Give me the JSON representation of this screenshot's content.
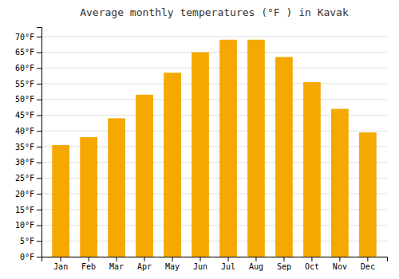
{
  "chart_data": {
    "type": "bar",
    "title": "Average monthly temperatures (°F ) in Kavak",
    "categories": [
      "Jan",
      "Feb",
      "Mar",
      "Apr",
      "May",
      "Jun",
      "Jul",
      "Aug",
      "Sep",
      "Oct",
      "Nov",
      "Dec"
    ],
    "values": [
      35.5,
      38.0,
      44.0,
      51.5,
      58.5,
      65.0,
      69.0,
      69.0,
      63.5,
      55.5,
      47.0,
      39.5
    ],
    "color": "#F5A800",
    "ylim": [
      0,
      73
    ],
    "yticks": [
      {
        "value": 0,
        "label": "0°F"
      },
      {
        "value": 5,
        "label": "5°F"
      },
      {
        "value": 10,
        "label": "10°F"
      },
      {
        "value": 15,
        "label": "15°F"
      },
      {
        "value": 20,
        "label": "20°F"
      },
      {
        "value": 25,
        "label": "25°F"
      },
      {
        "value": 30,
        "label": "30°F"
      },
      {
        "value": 35,
        "label": "35°F"
      },
      {
        "value": 40,
        "label": "40°F"
      },
      {
        "value": 45,
        "label": "45°F"
      },
      {
        "value": 50,
        "label": "50°F"
      },
      {
        "value": 55,
        "label": "55°F"
      },
      {
        "value": 60,
        "label": "60°F"
      },
      {
        "value": 65,
        "label": "65°F"
      },
      {
        "value": 70,
        "label": "70°F"
      }
    ],
    "grid": true
  }
}
